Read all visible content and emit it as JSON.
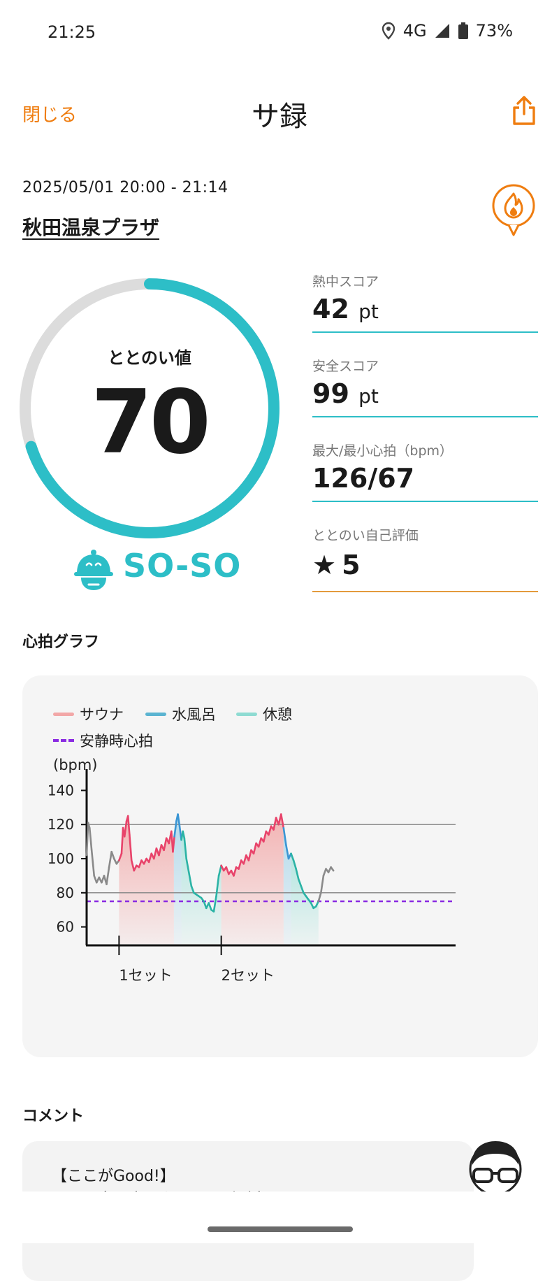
{
  "status_bar": {
    "time": "21:25",
    "network": "4G",
    "battery": "73%"
  },
  "header": {
    "close_label": "閉じる",
    "title": "サ録"
  },
  "session": {
    "date_range": "2025/05/01 20:00 - 21:14",
    "facility": "秋田温泉プラザ"
  },
  "gauge": {
    "label": "ととのい値",
    "value": "70",
    "score_fraction": 0.7,
    "mood": "SO-SO"
  },
  "metrics": [
    {
      "label": "熱中スコア",
      "value": "42",
      "unit": "pt"
    },
    {
      "label": "安全スコア",
      "value": "99",
      "unit": "pt"
    },
    {
      "label": "最大/最小心拍（bpm）",
      "value": "126/67",
      "unit": ""
    },
    {
      "label": "ととのい自己評価",
      "value": "5",
      "unit": ""
    }
  ],
  "colors": {
    "accent": "#ef7d10",
    "teal": "#2dbec7",
    "gauge_track": "#dcdcdc",
    "sauna": "#e8436a",
    "water": "#3b96d4",
    "rest": "#2bb3a5",
    "resting": "#8a2be2"
  },
  "heart_section_title": "心拍グラフ",
  "chart_data": {
    "type": "line",
    "legend": [
      {
        "name": "サウナ",
        "color": "#f2a7a7"
      },
      {
        "name": "水風呂",
        "color": "#5bb4d1"
      },
      {
        "name": "休憩",
        "color": "#8edbd2"
      },
      {
        "name": "安静時心拍",
        "color": "#8a2be2",
        "style": "dashed"
      }
    ],
    "ylabel": "(bpm)",
    "yticks": [
      60,
      80,
      100,
      120,
      140
    ],
    "ylim": [
      50,
      150
    ],
    "xlim": [
      0,
      74
    ],
    "gridlines": [
      80,
      120
    ],
    "resting_hr": 75,
    "set_ticks": [
      {
        "x": 6.5,
        "label": "1セット"
      },
      {
        "x": 27,
        "label": "2セット"
      }
    ],
    "phases": [
      {
        "type": "sauna",
        "start": 6.5,
        "end": 17.5
      },
      {
        "type": "water",
        "start": 17.5,
        "end": 19
      },
      {
        "type": "rest",
        "start": 19,
        "end": 27
      },
      {
        "type": "sauna",
        "start": 27,
        "end": 39.5
      },
      {
        "type": "water",
        "start": 39.5,
        "end": 41
      },
      {
        "type": "rest",
        "start": 41,
        "end": 46.5
      }
    ],
    "series": [
      {
        "x": 0,
        "y": 102
      },
      {
        "x": 0.3,
        "y": 121
      },
      {
        "x": 0.6,
        "y": 118
      },
      {
        "x": 1,
        "y": 105
      },
      {
        "x": 1.5,
        "y": 90
      },
      {
        "x": 2,
        "y": 86
      },
      {
        "x": 2.5,
        "y": 89
      },
      {
        "x": 3,
        "y": 86
      },
      {
        "x": 3.5,
        "y": 90
      },
      {
        "x": 4,
        "y": 85
      },
      {
        "x": 4.5,
        "y": 95
      },
      {
        "x": 5,
        "y": 104
      },
      {
        "x": 5.5,
        "y": 100
      },
      {
        "x": 6,
        "y": 97
      },
      {
        "x": 6.5,
        "y": 99
      },
      {
        "x": 7,
        "y": 103
      },
      {
        "x": 7.3,
        "y": 118
      },
      {
        "x": 7.6,
        "y": 113
      },
      {
        "x": 8,
        "y": 122
      },
      {
        "x": 8.3,
        "y": 125
      },
      {
        "x": 8.6,
        "y": 114
      },
      {
        "x": 9,
        "y": 99
      },
      {
        "x": 9.5,
        "y": 93
      },
      {
        "x": 10,
        "y": 96
      },
      {
        "x": 10.5,
        "y": 95
      },
      {
        "x": 11,
        "y": 99
      },
      {
        "x": 11.5,
        "y": 97
      },
      {
        "x": 12,
        "y": 100
      },
      {
        "x": 12.5,
        "y": 98
      },
      {
        "x": 13,
        "y": 103
      },
      {
        "x": 13.5,
        "y": 100
      },
      {
        "x": 14,
        "y": 106
      },
      {
        "x": 14.5,
        "y": 102
      },
      {
        "x": 15,
        "y": 108
      },
      {
        "x": 15.5,
        "y": 105
      },
      {
        "x": 16,
        "y": 112
      },
      {
        "x": 16.5,
        "y": 109
      },
      {
        "x": 17,
        "y": 116
      },
      {
        "x": 17.3,
        "y": 104
      },
      {
        "x": 17.6,
        "y": 113
      },
      {
        "x": 18,
        "y": 122
      },
      {
        "x": 18.3,
        "y": 126
      },
      {
        "x": 18.6,
        "y": 120
      },
      {
        "x": 19,
        "y": 111
      },
      {
        "x": 19.3,
        "y": 116
      },
      {
        "x": 19.6,
        "y": 112
      },
      {
        "x": 20,
        "y": 100
      },
      {
        "x": 20.5,
        "y": 92
      },
      {
        "x": 21,
        "y": 84
      },
      {
        "x": 21.5,
        "y": 80
      },
      {
        "x": 22,
        "y": 79
      },
      {
        "x": 22.5,
        "y": 78
      },
      {
        "x": 23,
        "y": 77
      },
      {
        "x": 23.5,
        "y": 75
      },
      {
        "x": 24,
        "y": 71
      },
      {
        "x": 24.5,
        "y": 74
      },
      {
        "x": 25,
        "y": 70
      },
      {
        "x": 25.5,
        "y": 69
      },
      {
        "x": 26,
        "y": 78
      },
      {
        "x": 26.5,
        "y": 90
      },
      {
        "x": 27,
        "y": 96
      },
      {
        "x": 27.5,
        "y": 93
      },
      {
        "x": 28,
        "y": 95
      },
      {
        "x": 28.5,
        "y": 91
      },
      {
        "x": 29,
        "y": 93
      },
      {
        "x": 29.5,
        "y": 90
      },
      {
        "x": 30,
        "y": 95
      },
      {
        "x": 30.5,
        "y": 94
      },
      {
        "x": 31,
        "y": 99
      },
      {
        "x": 31.5,
        "y": 97
      },
      {
        "x": 32,
        "y": 102
      },
      {
        "x": 32.5,
        "y": 99
      },
      {
        "x": 33,
        "y": 105
      },
      {
        "x": 33.5,
        "y": 103
      },
      {
        "x": 34,
        "y": 109
      },
      {
        "x": 34.5,
        "y": 107
      },
      {
        "x": 35,
        "y": 112
      },
      {
        "x": 35.5,
        "y": 110
      },
      {
        "x": 36,
        "y": 116
      },
      {
        "x": 36.5,
        "y": 114
      },
      {
        "x": 37,
        "y": 119
      },
      {
        "x": 37.5,
        "y": 117
      },
      {
        "x": 38,
        "y": 124
      },
      {
        "x": 38.5,
        "y": 120
      },
      {
        "x": 39,
        "y": 126
      },
      {
        "x": 39.5,
        "y": 118
      },
      {
        "x": 40,
        "y": 108
      },
      {
        "x": 40.5,
        "y": 100
      },
      {
        "x": 41,
        "y": 103
      },
      {
        "x": 41.5,
        "y": 99
      },
      {
        "x": 42,
        "y": 94
      },
      {
        "x": 42.5,
        "y": 88
      },
      {
        "x": 43,
        "y": 84
      },
      {
        "x": 43.5,
        "y": 80
      },
      {
        "x": 44,
        "y": 78
      },
      {
        "x": 44.5,
        "y": 76
      },
      {
        "x": 45,
        "y": 74
      },
      {
        "x": 45.5,
        "y": 71
      },
      {
        "x": 46,
        "y": 72
      },
      {
        "x": 46.5,
        "y": 75
      },
      {
        "x": 47,
        "y": 80
      },
      {
        "x": 47.5,
        "y": 90
      },
      {
        "x": 48,
        "y": 94
      },
      {
        "x": 48.5,
        "y": 92
      },
      {
        "x": 49,
        "y": 95
      },
      {
        "x": 49.5,
        "y": 93
      }
    ]
  },
  "comment_section_title": "コメント",
  "comment": {
    "line1": "【ここがGood!】",
    "line2": "サウナ室を出るタイミングが良いです。"
  }
}
